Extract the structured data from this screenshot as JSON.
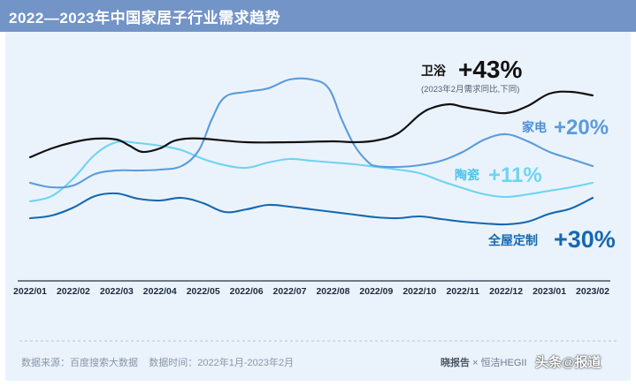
{
  "header": {
    "title": "2022—2023年中国家居子行业需求趋势"
  },
  "footer": {
    "source_label": "数据来源：百度搜索大数据",
    "period_label": "数据时间：2022年1月-2023年2月",
    "brand": "晓报告",
    "cross": "×",
    "partner": "恒洁HEGII",
    "watermark": "头条@报道"
  },
  "colors": {
    "title_bar": "#7394c6",
    "panel": "#eaf3fc",
    "bath": "#111111",
    "appliance": "#5b9bdc",
    "ceramic": "#6fd3f2",
    "custom": "#1668b0"
  },
  "chart_data": {
    "type": "line",
    "title": "2022—2023年中国家居子行业需求趋势",
    "xlabel": "",
    "ylabel": "",
    "grid": false,
    "categories": [
      "2022/01",
      "2022/02",
      "2022/03",
      "2022/04",
      "2022/05",
      "2022/06",
      "2022/07",
      "2022/08",
      "2022/09",
      "2022/10",
      "2022/11",
      "2022/12",
      "2023/01",
      "2023/02"
    ],
    "series": [
      {
        "key": "bath",
        "name": "卫浴",
        "value_label": "+43%",
        "note": "(2023年2月需求同比,下同)",
        "values": [
          [
            0,
            178
          ],
          [
            0.5,
            168
          ],
          [
            1,
            161
          ],
          [
            1.5,
            157
          ],
          [
            2,
            158
          ],
          [
            2.3,
            165
          ],
          [
            2.6,
            172
          ],
          [
            3,
            168
          ],
          [
            3.3,
            160
          ],
          [
            3.6,
            157
          ],
          [
            4,
            157
          ],
          [
            5,
            161
          ],
          [
            6,
            161
          ],
          [
            7,
            160
          ],
          [
            7.5,
            161
          ],
          [
            8,
            159
          ],
          [
            8.5,
            151
          ],
          [
            9,
            130
          ],
          [
            9.3,
            122
          ],
          [
            9.7,
            118
          ],
          [
            10,
            121
          ],
          [
            10.5,
            125
          ],
          [
            11,
            128
          ],
          [
            11.5,
            120
          ],
          [
            12,
            106
          ],
          [
            12.5,
            104
          ],
          [
            13,
            108
          ]
        ]
      },
      {
        "key": "appliance",
        "name": "家电",
        "value_label": "+20%",
        "values": [
          [
            0,
            207
          ],
          [
            0.5,
            212
          ],
          [
            1,
            210
          ],
          [
            1.5,
            197
          ],
          [
            2,
            193
          ],
          [
            2.5,
            193
          ],
          [
            3,
            192
          ],
          [
            3.5,
            188
          ],
          [
            3.9,
            170
          ],
          [
            4.2,
            135
          ],
          [
            4.5,
            110
          ],
          [
            5,
            104
          ],
          [
            5.5,
            100
          ],
          [
            6,
            90
          ],
          [
            6.5,
            90
          ],
          [
            6.9,
            100
          ],
          [
            7.2,
            135
          ],
          [
            7.5,
            165
          ],
          [
            7.8,
            183
          ],
          [
            8,
            188
          ],
          [
            8.5,
            189
          ],
          [
            9,
            187
          ],
          [
            9.5,
            182
          ],
          [
            10,
            172
          ],
          [
            10.5,
            158
          ],
          [
            11,
            152
          ],
          [
            11.5,
            160
          ],
          [
            12,
            172
          ],
          [
            12.5,
            180
          ],
          [
            13,
            188
          ]
        ]
      },
      {
        "key": "ceramic",
        "name": "陶瓷",
        "value_label": "+11%",
        "values": [
          [
            0,
            228
          ],
          [
            0.5,
            222
          ],
          [
            1,
            202
          ],
          [
            1.5,
            175
          ],
          [
            2,
            161
          ],
          [
            2.5,
            162
          ],
          [
            3,
            165
          ],
          [
            3.5,
            170
          ],
          [
            4,
            180
          ],
          [
            4.5,
            187
          ],
          [
            5,
            190
          ],
          [
            5.5,
            184
          ],
          [
            6,
            180
          ],
          [
            6.5,
            182
          ],
          [
            7,
            184
          ],
          [
            7.5,
            186
          ],
          [
            8,
            189
          ],
          [
            8.5,
            192
          ],
          [
            9,
            196
          ],
          [
            9.5,
            205
          ],
          [
            10,
            213
          ],
          [
            10.5,
            220
          ],
          [
            11,
            223
          ],
          [
            11.5,
            220
          ],
          [
            12,
            216
          ],
          [
            12.5,
            212
          ],
          [
            13,
            207
          ]
        ]
      },
      {
        "key": "custom",
        "name": "全屋定制",
        "value_label": "+30%",
        "values": [
          [
            0,
            247
          ],
          [
            0.5,
            244
          ],
          [
            1,
            235
          ],
          [
            1.5,
            222
          ],
          [
            2,
            219
          ],
          [
            2.5,
            225
          ],
          [
            3,
            227
          ],
          [
            3.5,
            224
          ],
          [
            4,
            230
          ],
          [
            4.5,
            240
          ],
          [
            5,
            237
          ],
          [
            5.5,
            232
          ],
          [
            6,
            234
          ],
          [
            6.5,
            237
          ],
          [
            7,
            240
          ],
          [
            7.5,
            243
          ],
          [
            8,
            246
          ],
          [
            8.5,
            247
          ],
          [
            9,
            245
          ],
          [
            9.5,
            248
          ],
          [
            10,
            251
          ],
          [
            10.5,
            253
          ],
          [
            11,
            254
          ],
          [
            11.5,
            251
          ],
          [
            12,
            242
          ],
          [
            12.5,
            236
          ],
          [
            13,
            224
          ]
        ]
      }
    ]
  }
}
